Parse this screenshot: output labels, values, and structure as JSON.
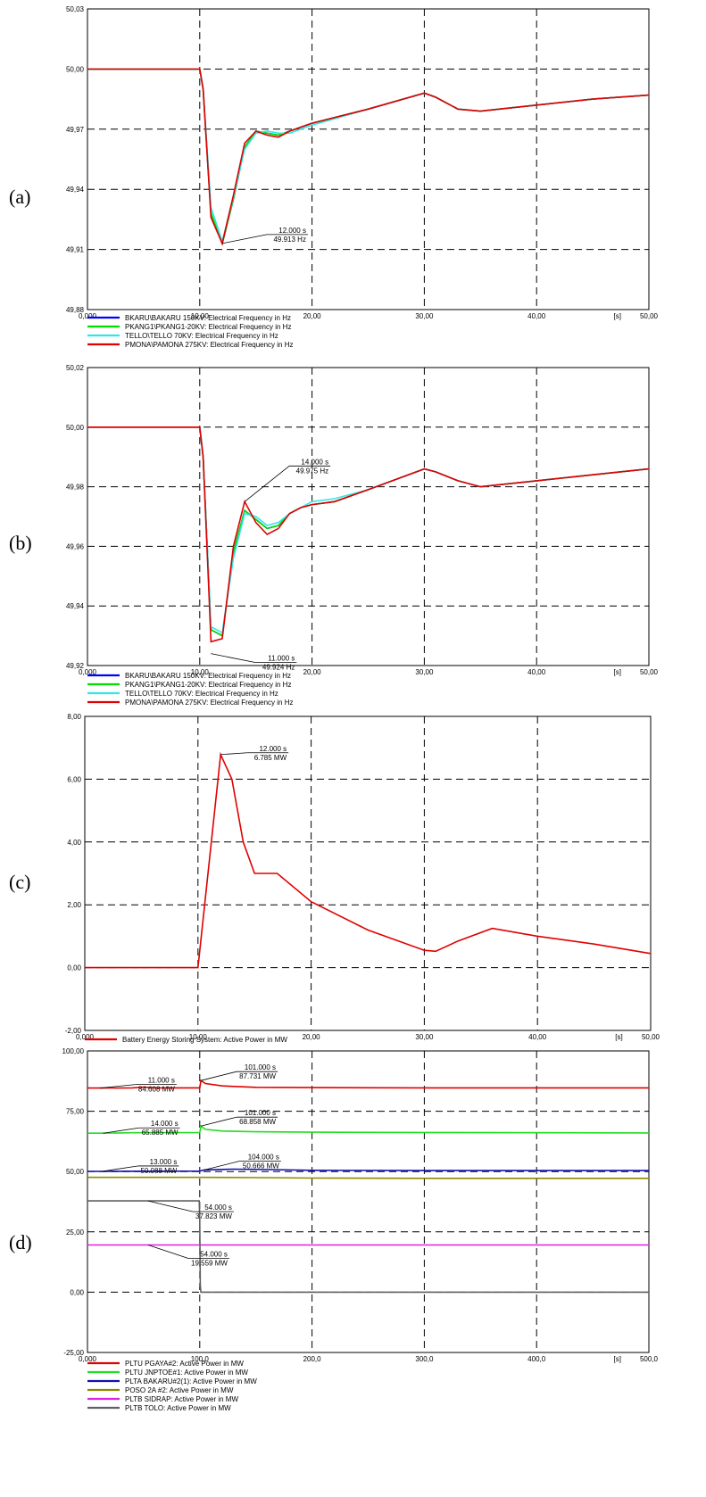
{
  "panel_labels": [
    "(a)",
    "(b)",
    "(c)",
    "(d)"
  ],
  "chart_data": [
    {
      "type": "line",
      "panel": "(a)",
      "xlim": [
        0,
        50
      ],
      "ylim": [
        49.88,
        50.03
      ],
      "x_ticks": [
        "0,000",
        "10,00",
        "20,00",
        "30,00",
        "40,00",
        "[s]",
        "50,00"
      ],
      "y_ticks": [
        "50,03",
        "50,00",
        "49,97",
        "49,94",
        "49,91",
        "49,88"
      ],
      "grid": true,
      "legend_position": "bottom-left",
      "series": [
        {
          "name": "BKARU\\BAKARU 150KV: Electrical Frequency in Hz",
          "color": "#0000ff",
          "x": [
            0,
            10,
            10.3,
            11,
            12,
            13,
            14,
            15,
            16,
            17,
            18,
            20,
            25,
            30,
            31,
            33,
            35,
            40,
            45,
            50
          ],
          "y": [
            50.0,
            50.0,
            49.99,
            49.928,
            49.913,
            49.935,
            49.961,
            49.969,
            49.968,
            49.967,
            49.969,
            49.973,
            49.98,
            49.988,
            49.986,
            49.98,
            49.979,
            49.982,
            49.985,
            49.987
          ]
        },
        {
          "name": "PKANG1\\PKANG1-20KV: Electrical Frequency in Hz",
          "color": "#00dd00",
          "x": [
            0,
            10,
            10.3,
            11,
            12,
            13,
            14,
            15,
            16,
            17,
            18,
            20,
            25,
            30,
            31,
            33,
            35,
            40,
            45,
            50
          ],
          "y": [
            50.0,
            50.0,
            49.99,
            49.928,
            49.913,
            49.935,
            49.961,
            49.969,
            49.968,
            49.967,
            49.969,
            49.973,
            49.98,
            49.988,
            49.986,
            49.98,
            49.979,
            49.982,
            49.985,
            49.987
          ]
        },
        {
          "name": "TELLO\\TELLO 70KV: Electrical Frequency in Hz",
          "color": "#33e6e6",
          "x": [
            0,
            10,
            10.3,
            11,
            12,
            13,
            14,
            15,
            16,
            17,
            18,
            20,
            25,
            30,
            31,
            33,
            35,
            40,
            45,
            50
          ],
          "y": [
            50.0,
            50.0,
            49.99,
            49.931,
            49.914,
            49.936,
            49.96,
            49.968,
            49.969,
            49.968,
            49.968,
            49.972,
            49.98,
            49.988,
            49.986,
            49.98,
            49.979,
            49.982,
            49.985,
            49.987
          ]
        },
        {
          "name": "PMONA\\PAMONA 275KV: Electrical Frequency in Hz",
          "color": "#e00000",
          "x": [
            0,
            10,
            10.3,
            11,
            12,
            13,
            14,
            15,
            16,
            17,
            18,
            20,
            25,
            30,
            31,
            33,
            35,
            40,
            45,
            50
          ],
          "y": [
            50.0,
            50.0,
            49.99,
            49.926,
            49.913,
            49.937,
            49.963,
            49.969,
            49.967,
            49.966,
            49.969,
            49.973,
            49.98,
            49.988,
            49.986,
            49.98,
            49.979,
            49.982,
            49.985,
            49.987
          ]
        }
      ],
      "annotations": [
        {
          "x": 12.0,
          "y": 49.913,
          "line1": "12.000 s",
          "line2": "49.913 Hz"
        }
      ]
    },
    {
      "type": "line",
      "panel": "(b)",
      "xlim": [
        0,
        50
      ],
      "ylim": [
        49.92,
        50.02
      ],
      "x_ticks": [
        "0,000",
        "10,00",
        "20,00",
        "30,00",
        "40,00",
        "[s]",
        "50,00"
      ],
      "y_ticks": [
        "50,02",
        "50,00",
        "49,98",
        "49,96",
        "49,94",
        "49,92"
      ],
      "grid": true,
      "legend_position": "bottom-left",
      "series": [
        {
          "name": "BKARU\\BAKARU 150KV: Electrical Frequency in Hz",
          "color": "#0000ff",
          "x": [
            0,
            10,
            10.3,
            11,
            12,
            13,
            14,
            15,
            16,
            17,
            18,
            19,
            20,
            22,
            25,
            30,
            31,
            33,
            35,
            40,
            45,
            50
          ],
          "y": [
            50.0,
            50.0,
            49.99,
            49.932,
            49.93,
            49.958,
            49.972,
            49.969,
            49.966,
            49.967,
            49.971,
            49.973,
            49.974,
            49.975,
            49.979,
            49.986,
            49.985,
            49.982,
            49.98,
            49.982,
            49.984,
            49.986
          ]
        },
        {
          "name": "PKANG1\\PKANG1-20KV: Electrical Frequency in Hz",
          "color": "#00dd00",
          "x": [
            0,
            10,
            10.3,
            11,
            12,
            13,
            14,
            15,
            16,
            17,
            18,
            19,
            20,
            22,
            25,
            30,
            31,
            33,
            35,
            40,
            45,
            50
          ],
          "y": [
            50.0,
            50.0,
            49.99,
            49.932,
            49.93,
            49.958,
            49.972,
            49.969,
            49.966,
            49.967,
            49.971,
            49.973,
            49.974,
            49.975,
            49.979,
            49.986,
            49.985,
            49.982,
            49.98,
            49.982,
            49.984,
            49.986
          ]
        },
        {
          "name": "TELLO\\TELLO 70KV: Electrical Frequency in Hz",
          "color": "#33e6e6",
          "x": [
            0,
            10,
            10.3,
            11,
            12,
            13,
            14,
            15,
            16,
            17,
            18,
            19,
            20,
            22,
            25,
            30,
            31,
            33,
            35,
            40,
            45,
            50
          ],
          "y": [
            50.0,
            50.0,
            49.99,
            49.933,
            49.931,
            49.956,
            49.971,
            49.97,
            49.967,
            49.968,
            49.971,
            49.973,
            49.975,
            49.976,
            49.979,
            49.986,
            49.985,
            49.982,
            49.98,
            49.982,
            49.984,
            49.986
          ]
        },
        {
          "name": "PMONA\\PAMONA 275KV: Electrical Frequency in Hz",
          "color": "#e00000",
          "x": [
            0,
            10,
            10.3,
            11,
            12,
            13,
            14,
            15,
            16,
            17,
            18,
            19,
            20,
            22,
            25,
            30,
            31,
            33,
            35,
            40,
            45,
            50
          ],
          "y": [
            50.0,
            50.0,
            49.99,
            49.928,
            49.929,
            49.96,
            49.975,
            49.968,
            49.964,
            49.966,
            49.971,
            49.973,
            49.974,
            49.975,
            49.979,
            49.986,
            49.985,
            49.982,
            49.98,
            49.982,
            49.984,
            49.986
          ]
        }
      ],
      "annotations": [
        {
          "x": 14.0,
          "y": 49.975,
          "line1": "14.000 s",
          "line2": "49.975 Hz",
          "placement": "above"
        },
        {
          "x": 11.0,
          "y": 49.924,
          "line1": "11.000 s",
          "line2": "49.924 Hz",
          "placement": "below"
        }
      ]
    },
    {
      "type": "line",
      "panel": "(c)",
      "xlim": [
        0,
        50
      ],
      "ylim": [
        -2,
        8
      ],
      "x_ticks": [
        "0,000",
        "10,00",
        "20,00",
        "30,00",
        "40,00",
        "[s]",
        "50,00"
      ],
      "y_ticks": [
        "8,00",
        "6,00",
        "4,00",
        "2,00",
        "0,00",
        "-2,00"
      ],
      "grid": true,
      "legend_position": "bottom-left",
      "series": [
        {
          "name": "Battery Energy Storing System: Active Power in MW",
          "color": "#e00000",
          "x": [
            0,
            10,
            12,
            13,
            14,
            15,
            17,
            20,
            25,
            30,
            31,
            33,
            36,
            40,
            45,
            50
          ],
          "y": [
            0,
            0,
            6.785,
            6.0,
            4.0,
            3.0,
            3.0,
            2.1,
            1.2,
            0.55,
            0.52,
            0.85,
            1.25,
            1.0,
            0.75,
            0.45
          ]
        }
      ],
      "annotations": [
        {
          "x": 12.0,
          "y": 6.785,
          "line1": "12.000 s",
          "line2": "6.785 MW"
        }
      ]
    },
    {
      "type": "line",
      "panel": "(d)",
      "xlim": [
        0,
        500
      ],
      "ylim": [
        -25,
        100
      ],
      "x_ticks": [
        "0,000",
        "100,0",
        "200,0",
        "300,0",
        "400,0",
        "[s]",
        "500,0"
      ],
      "y_ticks": [
        "100,00",
        "75,00",
        "50,00",
        "25,00",
        "0,00",
        "-25,00"
      ],
      "grid": true,
      "legend_position": "bottom-left",
      "series": [
        {
          "name": "PLTU PGAYA#2: Active Power in MW",
          "color": "#e00000",
          "x": [
            0,
            11,
            40,
            50,
            60,
            100,
            101,
            105,
            120,
            150,
            200,
            300,
            500
          ],
          "y": [
            84.608,
            84.608,
            84.7,
            85.0,
            84.7,
            84.7,
            87.731,
            86.5,
            85.5,
            84.9,
            84.8,
            84.7,
            84.7
          ]
        },
        {
          "name": "PLTU JNPTOE#1: Active Power in MW",
          "color": "#22dd22",
          "x": [
            0,
            14,
            40,
            100,
            101,
            105,
            120,
            150,
            200,
            300,
            500
          ],
          "y": [
            65.885,
            65.885,
            66.1,
            66.2,
            68.858,
            67.5,
            66.8,
            66.5,
            66.3,
            66.2,
            66.0
          ]
        },
        {
          "name": "PLTA BAKARU#2(1): Active Power in MW",
          "color": "#1010b0",
          "x": [
            0,
            13,
            100,
            104,
            130,
            160,
            200,
            300,
            500
          ],
          "y": [
            50.088,
            50.088,
            50.2,
            50.666,
            51.0,
            50.8,
            50.5,
            50.4,
            50.4
          ]
        },
        {
          "name": "POSO 2A #2: Active Power in MW",
          "color": "#8a8a00",
          "x": [
            0,
            100,
            150,
            200,
            300,
            500
          ],
          "y": [
            47.6,
            47.6,
            47.5,
            47.3,
            47.2,
            47.2
          ]
        },
        {
          "name": "PLTB SIDRAP: Active Power in MW",
          "color": "#e020e0",
          "x": [
            0,
            500
          ],
          "y": [
            19.559,
            19.559
          ]
        },
        {
          "name": "PLTB TOLO: Active Power in MW",
          "color": "#606060",
          "x": [
            0,
            99.5,
            100,
            100.5,
            101,
            500
          ],
          "y": [
            37.823,
            37.823,
            30.0,
            3.0,
            0.0,
            0.0
          ]
        }
      ],
      "annotations": [
        {
          "x": 11,
          "y": 84.608,
          "line1": "11.000 s",
          "line2": "84.608 MW"
        },
        {
          "x": 101,
          "y": 87.731,
          "line1": "101.000 s",
          "line2": "87.731 MW"
        },
        {
          "x": 14,
          "y": 65.885,
          "line1": "14.000 s",
          "line2": "65.885 MW"
        },
        {
          "x": 101,
          "y": 68.858,
          "line1": "101.000 s",
          "line2": "68.858 MW"
        },
        {
          "x": 13,
          "y": 50.088,
          "line1": "13.000 s",
          "line2": "50.088 MW"
        },
        {
          "x": 104,
          "y": 50.666,
          "line1": "104.000 s",
          "line2": "50.666 MW"
        },
        {
          "x": 54,
          "y": 37.823,
          "line1": "54.000 s",
          "line2": "37.823 MW"
        },
        {
          "x": 54,
          "y": 19.559,
          "line1": "54.000 s",
          "line2": "19.559 MW"
        }
      ]
    }
  ]
}
